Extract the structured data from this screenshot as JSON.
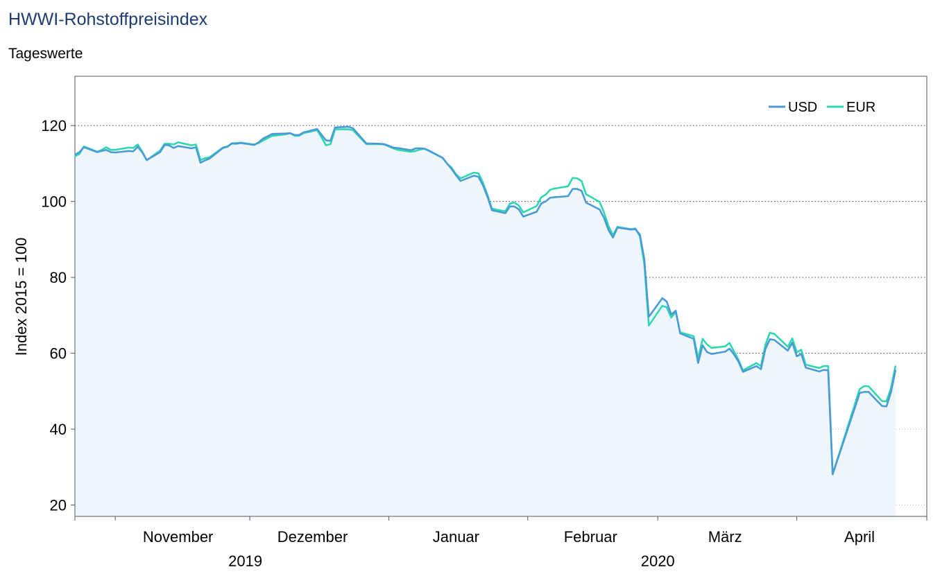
{
  "header": {
    "title": "HWWI-Rohstoffpreisindex",
    "subtitle": "Tageswerte"
  },
  "chart_data": {
    "type": "line",
    "ylabel": "Index 2015 = 100",
    "ylim": [
      17,
      133
    ],
    "yticks": [
      20,
      40,
      60,
      80,
      100,
      120
    ],
    "grid": "horizontal dotted at 60, 80, 100, 120",
    "legend_position": "top-right",
    "x_range": [
      "2019-10-23",
      "2020-04-30"
    ],
    "month_labels": [
      {
        "label": "November",
        "date": "2019-11-15"
      },
      {
        "label": "Dezember",
        "date": "2019-12-15"
      },
      {
        "label": "Januar",
        "date": "2020-01-16"
      },
      {
        "label": "Februar",
        "date": "2020-02-15"
      },
      {
        "label": "März",
        "date": "2020-03-16"
      },
      {
        "label": "April",
        "date": "2020-04-15"
      }
    ],
    "year_labels": [
      {
        "label": "2019",
        "date": "2019-11-30"
      },
      {
        "label": "2020",
        "date": "2020-03-01"
      }
    ],
    "month_boundaries": [
      "2019-11-01",
      "2019-12-01",
      "2020-01-01",
      "2020-02-01",
      "2020-03-01",
      "2020-04-01"
    ],
    "series": [
      {
        "name": "USD",
        "color": "#4a9ad6",
        "points": [
          [
            "2019-10-23",
            112.3
          ],
          [
            "2019-10-24",
            113.0
          ],
          [
            "2019-10-25",
            114.3
          ],
          [
            "2019-10-28",
            113.0
          ],
          [
            "2019-10-29",
            113.3
          ],
          [
            "2019-10-30",
            113.6
          ],
          [
            "2019-10-31",
            113.0
          ],
          [
            "2019-11-01",
            112.9
          ],
          [
            "2019-11-04",
            113.3
          ],
          [
            "2019-11-05",
            113.2
          ],
          [
            "2019-11-06",
            114.4
          ],
          [
            "2019-11-07",
            113.0
          ],
          [
            "2019-11-08",
            110.9
          ],
          [
            "2019-11-11",
            113.0
          ],
          [
            "2019-11-12",
            114.9
          ],
          [
            "2019-11-13",
            114.8
          ],
          [
            "2019-11-14",
            114.1
          ],
          [
            "2019-11-15",
            114.6
          ],
          [
            "2019-11-18",
            114.0
          ],
          [
            "2019-11-19",
            114.3
          ],
          [
            "2019-11-20",
            110.2
          ],
          [
            "2019-11-21",
            110.8
          ],
          [
            "2019-11-22",
            111.3
          ],
          [
            "2019-11-25",
            114.1
          ],
          [
            "2019-11-26",
            114.4
          ],
          [
            "2019-11-27",
            115.3
          ],
          [
            "2019-11-28",
            115.2
          ],
          [
            "2019-11-29",
            115.4
          ],
          [
            "2019-12-02",
            114.9
          ],
          [
            "2019-12-03",
            115.6
          ],
          [
            "2019-12-04",
            116.6
          ],
          [
            "2019-12-05",
            117.2
          ],
          [
            "2019-12-06",
            117.8
          ],
          [
            "2019-12-09",
            117.9
          ],
          [
            "2019-12-10",
            118.0
          ],
          [
            "2019-12-11",
            117.5
          ],
          [
            "2019-12-12",
            117.5
          ],
          [
            "2019-12-13",
            118.2
          ],
          [
            "2019-12-16",
            119.1
          ],
          [
            "2019-12-17",
            117.6
          ],
          [
            "2019-12-18",
            116.1
          ],
          [
            "2019-12-19",
            116.0
          ],
          [
            "2019-12-20",
            119.5
          ],
          [
            "2019-12-23",
            119.7
          ],
          [
            "2019-12-24",
            119.3
          ],
          [
            "2019-12-27",
            115.3
          ],
          [
            "2019-12-30",
            115.2
          ],
          [
            "2019-12-31",
            115.1
          ],
          [
            "2020-01-02",
            114.2
          ],
          [
            "2020-01-03",
            114.1
          ],
          [
            "2020-01-06",
            113.5
          ],
          [
            "2020-01-07",
            114.0
          ],
          [
            "2020-01-08",
            114.0
          ],
          [
            "2020-01-09",
            113.9
          ],
          [
            "2020-01-10",
            113.3
          ],
          [
            "2020-01-13",
            111.5
          ],
          [
            "2020-01-14",
            110.0
          ],
          [
            "2020-01-15",
            108.6
          ],
          [
            "2020-01-16",
            106.9
          ],
          [
            "2020-01-17",
            105.4
          ],
          [
            "2020-01-20",
            106.8
          ],
          [
            "2020-01-21",
            106.5
          ],
          [
            "2020-01-22",
            104.3
          ],
          [
            "2020-01-23",
            101.3
          ],
          [
            "2020-01-24",
            97.7
          ],
          [
            "2020-01-27",
            96.9
          ],
          [
            "2020-01-28",
            98.7
          ],
          [
            "2020-01-29",
            98.7
          ],
          [
            "2020-01-30",
            97.9
          ],
          [
            "2020-01-31",
            96.0
          ],
          [
            "2020-02-03",
            97.3
          ],
          [
            "2020-02-04",
            99.5
          ],
          [
            "2020-02-05",
            100.0
          ],
          [
            "2020-02-06",
            101.0
          ],
          [
            "2020-02-07",
            101.1
          ],
          [
            "2020-02-10",
            101.4
          ],
          [
            "2020-02-11",
            103.3
          ],
          [
            "2020-02-12",
            103.3
          ],
          [
            "2020-02-13",
            102.8
          ],
          [
            "2020-02-14",
            99.7
          ],
          [
            "2020-02-17",
            97.9
          ],
          [
            "2020-02-18",
            95.7
          ],
          [
            "2020-02-19",
            92.5
          ],
          [
            "2020-02-20",
            90.5
          ],
          [
            "2020-02-21",
            93.1
          ],
          [
            "2020-02-24",
            92.6
          ],
          [
            "2020-02-25",
            92.7
          ],
          [
            "2020-02-26",
            91.3
          ],
          [
            "2020-02-27",
            84.8
          ],
          [
            "2020-02-28",
            69.6
          ],
          [
            "2020-03-02",
            74.5
          ],
          [
            "2020-03-03",
            73.6
          ],
          [
            "2020-03-04",
            70.2
          ],
          [
            "2020-03-05",
            71.2
          ],
          [
            "2020-03-06",
            65.2
          ],
          [
            "2020-03-09",
            63.8
          ],
          [
            "2020-03-10",
            57.4
          ],
          [
            "2020-03-11",
            62.1
          ],
          [
            "2020-03-12",
            60.3
          ],
          [
            "2020-03-13",
            59.8
          ],
          [
            "2020-03-16",
            60.4
          ],
          [
            "2020-03-17",
            61.2
          ],
          [
            "2020-03-18",
            59.7
          ],
          [
            "2020-03-19",
            57.8
          ],
          [
            "2020-03-20",
            55.1
          ],
          [
            "2020-03-23",
            56.6
          ],
          [
            "2020-03-24",
            55.8
          ],
          [
            "2020-03-25",
            61.1
          ],
          [
            "2020-03-26",
            63.7
          ],
          [
            "2020-03-27",
            63.5
          ],
          [
            "2020-03-30",
            60.7
          ],
          [
            "2020-03-31",
            62.8
          ],
          [
            "2020-04-01",
            59.2
          ],
          [
            "2020-04-02",
            59.8
          ],
          [
            "2020-04-03",
            56.2
          ],
          [
            "2020-04-06",
            55.2
          ],
          [
            "2020-04-07",
            55.6
          ],
          [
            "2020-04-08",
            55.5
          ],
          [
            "2020-04-09",
            28.1
          ],
          [
            "2020-04-14",
            45.8
          ],
          [
            "2020-04-15",
            49.5
          ],
          [
            "2020-04-16",
            49.8
          ],
          [
            "2020-04-17",
            49.8
          ],
          [
            "2020-04-20",
            46.1
          ],
          [
            "2020-04-21",
            46.0
          ],
          [
            "2020-04-22",
            49.7
          ],
          [
            "2020-04-23",
            55.5
          ]
        ]
      },
      {
        "name": "EUR",
        "color": "#2dd8b0",
        "points": [
          [
            "2019-10-23",
            111.9
          ],
          [
            "2019-10-24",
            112.5
          ],
          [
            "2019-10-25",
            114.5
          ],
          [
            "2019-10-28",
            113.1
          ],
          [
            "2019-10-29",
            113.6
          ],
          [
            "2019-10-30",
            114.3
          ],
          [
            "2019-10-31",
            113.6
          ],
          [
            "2019-11-01",
            113.6
          ],
          [
            "2019-11-04",
            114.2
          ],
          [
            "2019-11-05",
            114.1
          ],
          [
            "2019-11-06",
            115.0
          ],
          [
            "2019-11-07",
            113.2
          ],
          [
            "2019-11-08",
            110.9
          ],
          [
            "2019-11-11",
            113.4
          ],
          [
            "2019-11-12",
            115.2
          ],
          [
            "2019-11-13",
            115.2
          ],
          [
            "2019-11-14",
            115.0
          ],
          [
            "2019-11-15",
            115.6
          ],
          [
            "2019-11-18",
            114.8
          ],
          [
            "2019-11-19",
            115.0
          ],
          [
            "2019-11-20",
            110.9
          ],
          [
            "2019-11-21",
            111.4
          ],
          [
            "2019-11-22",
            111.6
          ],
          [
            "2019-11-25",
            114.2
          ],
          [
            "2019-11-26",
            114.5
          ],
          [
            "2019-11-27",
            115.3
          ],
          [
            "2019-11-28",
            115.4
          ],
          [
            "2019-11-29",
            115.5
          ],
          [
            "2019-12-02",
            115.0
          ],
          [
            "2019-12-03",
            115.4
          ],
          [
            "2019-12-04",
            116.1
          ],
          [
            "2019-12-05",
            116.7
          ],
          [
            "2019-12-06",
            117.3
          ],
          [
            "2019-12-09",
            117.7
          ],
          [
            "2019-12-10",
            118.0
          ],
          [
            "2019-12-11",
            117.3
          ],
          [
            "2019-12-12",
            117.3
          ],
          [
            "2019-12-13",
            118.0
          ],
          [
            "2019-12-16",
            118.8
          ],
          [
            "2019-12-17",
            116.9
          ],
          [
            "2019-12-18",
            114.8
          ],
          [
            "2019-12-19",
            115.1
          ],
          [
            "2019-12-20",
            119.0
          ],
          [
            "2019-12-23",
            119.0
          ],
          [
            "2019-12-24",
            118.8
          ],
          [
            "2019-12-27",
            115.1
          ],
          [
            "2019-12-30",
            115.1
          ],
          [
            "2019-12-31",
            115.0
          ],
          [
            "2020-01-02",
            114.0
          ],
          [
            "2020-01-03",
            113.6
          ],
          [
            "2020-01-06",
            113.1
          ],
          [
            "2020-01-07",
            113.3
          ],
          [
            "2020-01-08",
            113.7
          ],
          [
            "2020-01-09",
            113.9
          ],
          [
            "2020-01-10",
            113.4
          ],
          [
            "2020-01-13",
            111.5
          ],
          [
            "2020-01-14",
            110.0
          ],
          [
            "2020-01-15",
            108.9
          ],
          [
            "2020-01-16",
            107.2
          ],
          [
            "2020-01-17",
            106.1
          ],
          [
            "2020-01-20",
            107.6
          ],
          [
            "2020-01-21",
            107.4
          ],
          [
            "2020-01-22",
            105.0
          ],
          [
            "2020-01-23",
            101.8
          ],
          [
            "2020-01-24",
            98.1
          ],
          [
            "2020-01-27",
            97.4
          ],
          [
            "2020-01-28",
            99.4
          ],
          [
            "2020-01-29",
            99.7
          ],
          [
            "2020-01-30",
            98.9
          ],
          [
            "2020-01-31",
            97.1
          ],
          [
            "2020-02-03",
            98.8
          ],
          [
            "2020-02-04",
            101.1
          ],
          [
            "2020-02-05",
            101.8
          ],
          [
            "2020-02-06",
            103.1
          ],
          [
            "2020-02-07",
            103.4
          ],
          [
            "2020-02-10",
            104.0
          ],
          [
            "2020-02-11",
            106.2
          ],
          [
            "2020-02-12",
            106.1
          ],
          [
            "2020-02-13",
            105.4
          ],
          [
            "2020-02-14",
            101.9
          ],
          [
            "2020-02-17",
            99.9
          ],
          [
            "2020-02-18",
            97.1
          ],
          [
            "2020-02-19",
            93.5
          ],
          [
            "2020-02-20",
            91.1
          ],
          [
            "2020-02-21",
            93.3
          ],
          [
            "2020-02-24",
            92.7
          ],
          [
            "2020-02-25",
            92.9
          ],
          [
            "2020-02-26",
            90.8
          ],
          [
            "2020-02-27",
            83.5
          ],
          [
            "2020-02-28",
            67.3
          ],
          [
            "2020-03-02",
            72.5
          ],
          [
            "2020-03-03",
            72.1
          ],
          [
            "2020-03-04",
            69.4
          ],
          [
            "2020-03-05",
            70.9
          ],
          [
            "2020-03-06",
            65.5
          ],
          [
            "2020-03-09",
            64.5
          ],
          [
            "2020-03-10",
            58.6
          ],
          [
            "2020-03-11",
            63.8
          ],
          [
            "2020-03-12",
            62.3
          ],
          [
            "2020-03-13",
            61.4
          ],
          [
            "2020-03-16",
            61.8
          ],
          [
            "2020-03-17",
            62.7
          ],
          [
            "2020-03-18",
            60.4
          ],
          [
            "2020-03-19",
            58.3
          ],
          [
            "2020-03-20",
            55.5
          ],
          [
            "2020-03-23",
            57.4
          ],
          [
            "2020-03-24",
            56.6
          ],
          [
            "2020-03-25",
            62.2
          ],
          [
            "2020-03-26",
            65.4
          ],
          [
            "2020-03-27",
            65.1
          ],
          [
            "2020-03-30",
            61.7
          ],
          [
            "2020-03-31",
            63.9
          ],
          [
            "2020-04-01",
            60.3
          ],
          [
            "2020-04-02",
            60.9
          ],
          [
            "2020-04-03",
            57.0
          ],
          [
            "2020-04-06",
            56.1
          ],
          [
            "2020-04-07",
            56.6
          ],
          [
            "2020-04-08",
            56.6
          ],
          [
            "2020-04-09",
            28.1
          ],
          [
            "2020-04-14",
            46.7
          ],
          [
            "2020-04-15",
            50.5
          ],
          [
            "2020-04-16",
            51.3
          ],
          [
            "2020-04-17",
            51.3
          ],
          [
            "2020-04-20",
            47.4
          ],
          [
            "2020-04-21",
            47.3
          ],
          [
            "2020-04-22",
            50.8
          ],
          [
            "2020-04-23",
            56.6
          ]
        ]
      }
    ]
  }
}
